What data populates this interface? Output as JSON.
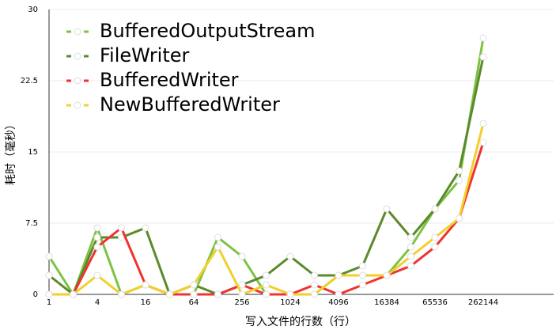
{
  "chart_data": {
    "type": "line",
    "x_label": "写入文件的行数（行）",
    "y_label": "耗时（毫秒）",
    "categories": [
      "1",
      null,
      "4",
      null,
      "16",
      null,
      "64",
      null,
      "256",
      null,
      "1024",
      null,
      "4096",
      null,
      "16384",
      null,
      "65536",
      null,
      "262144"
    ],
    "series": [
      {
        "name": "BufferedOutputStream",
        "color": "#7dc242",
        "values": [
          4,
          0,
          7,
          0,
          1,
          0,
          0,
          6,
          4,
          0,
          0,
          0,
          2,
          2,
          2,
          5,
          9,
          12,
          27
        ]
      },
      {
        "name": "FileWriter",
        "color": "#5b8a2b",
        "values": [
          2,
          0,
          6,
          6,
          7,
          0,
          1,
          0,
          1,
          2,
          4,
          2,
          2,
          3,
          9,
          6,
          9,
          13,
          25
        ]
      },
      {
        "name": "BufferedWriter",
        "color": "#f0332f",
        "values": [
          0,
          0,
          5,
          7,
          1,
          0,
          0,
          0,
          1,
          0,
          0,
          1,
          0,
          1,
          2,
          3,
          5,
          8,
          16
        ]
      },
      {
        "name": "NewBufferedWriter",
        "color": "#f2cf2b",
        "values": [
          0,
          0,
          2,
          0,
          1,
          0,
          1,
          5,
          0,
          1,
          0,
          0,
          2,
          2,
          2,
          4,
          6,
          8,
          18
        ]
      }
    ],
    "ylim": [
      0,
      30
    ],
    "yticks": [
      0,
      7.5,
      15,
      22.5,
      30
    ],
    "grid": true,
    "legend": "top-left"
  }
}
